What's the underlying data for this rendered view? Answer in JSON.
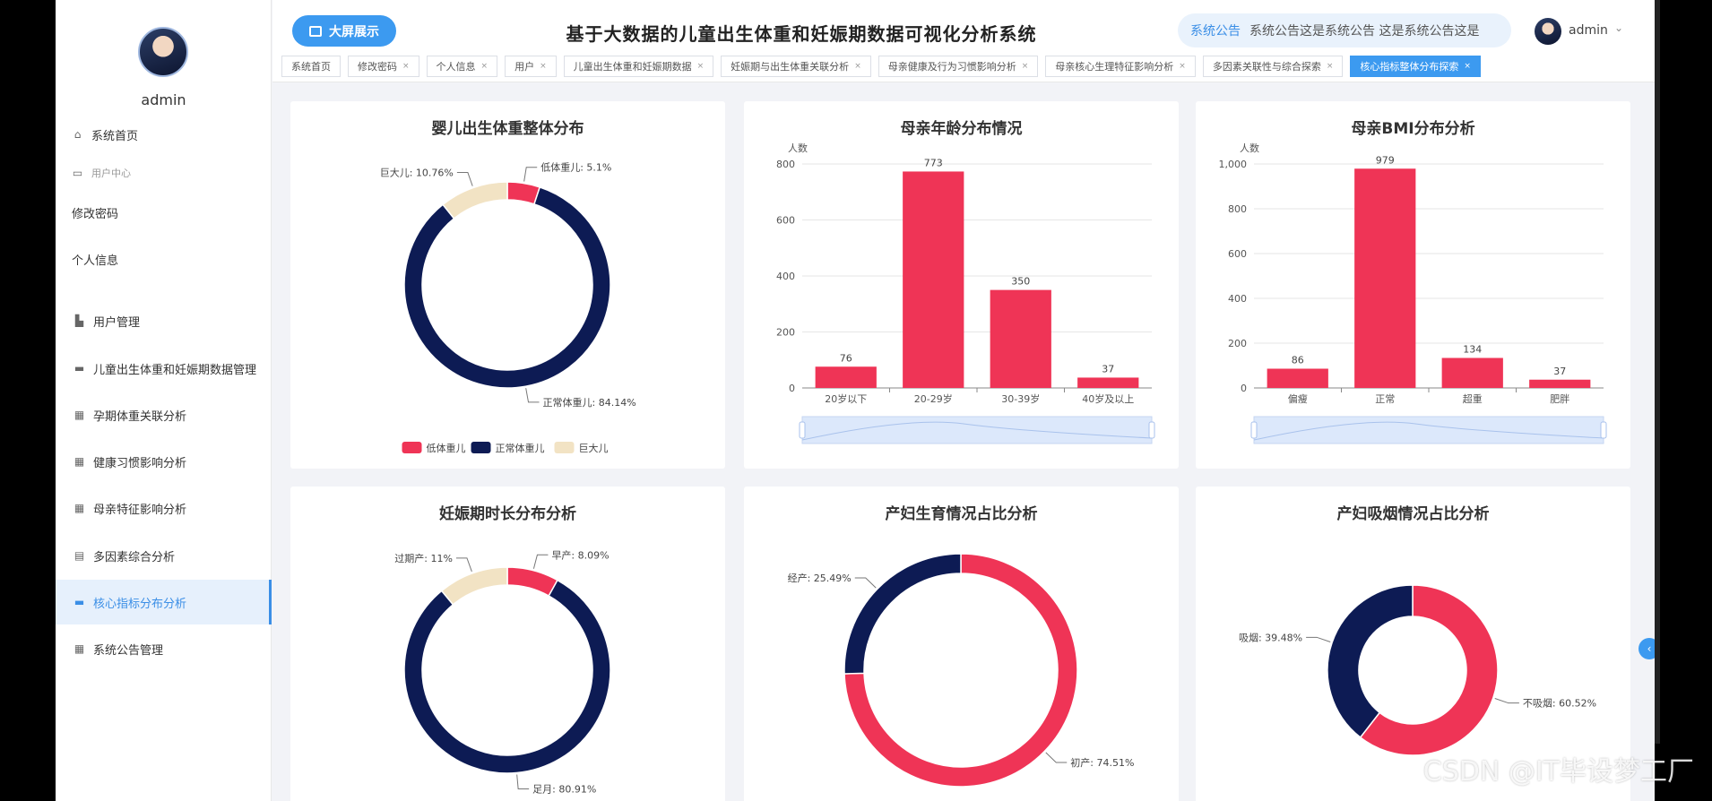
{
  "sidebar": {
    "user_name": "admin",
    "items": [
      {
        "label": "系统首页",
        "icon": "home-icon",
        "type": "main"
      },
      {
        "label": "用户中心",
        "icon": "user-center-icon",
        "type": "sub"
      },
      {
        "label": "修改密码",
        "icon": "",
        "type": "plain"
      },
      {
        "label": "个人信息",
        "icon": "",
        "type": "plain"
      },
      {
        "label": "用户管理",
        "icon": "user-manage-icon",
        "type": "main"
      },
      {
        "label": "儿童出生体重和妊娠期数据管理",
        "icon": "briefcase-icon",
        "type": "main"
      },
      {
        "label": "孕期体重关联分析",
        "icon": "grid-icon",
        "type": "main"
      },
      {
        "label": "健康习惯影响分析",
        "icon": "grid-icon",
        "type": "main"
      },
      {
        "label": "母亲特征影响分析",
        "icon": "grid-icon",
        "type": "main"
      },
      {
        "label": "多因素综合分析",
        "icon": "clipboard-icon",
        "type": "main"
      },
      {
        "label": "核心指标分布分析",
        "icon": "monitor-icon",
        "type": "active"
      },
      {
        "label": "系统公告管理",
        "icon": "grid-icon",
        "type": "main"
      }
    ]
  },
  "header": {
    "bigscreen_label": "大屏展示",
    "title": "基于大数据的儿童出生体重和妊娠期数据可视化分析系统",
    "notice_label": "系统公告",
    "notice_text": "系统公告这是系统公告    这是系统公告这是",
    "user_name": "admin"
  },
  "tabs": [
    {
      "label": "系统首页",
      "closable": false,
      "active": false
    },
    {
      "label": "修改密码",
      "closable": true,
      "active": false
    },
    {
      "label": "个人信息",
      "closable": true,
      "active": false
    },
    {
      "label": "用户",
      "closable": true,
      "active": false
    },
    {
      "label": "儿童出生体重和妊娠期数据",
      "closable": true,
      "active": false
    },
    {
      "label": "妊娠期与出生体重关联分析",
      "closable": true,
      "active": false
    },
    {
      "label": "母亲健康及行为习惯影响分析",
      "closable": true,
      "active": false
    },
    {
      "label": "母亲核心生理特征影响分析",
      "closable": true,
      "active": false
    },
    {
      "label": "多因素关联性与综合探索",
      "closable": true,
      "active": false
    },
    {
      "label": "核心指标整体分布探索",
      "closable": true,
      "active": true
    }
  ],
  "colors": {
    "red": "#ef3456",
    "navy": "#0d1b54",
    "beige": "#f2e3c4",
    "accent": "#3c9af0"
  },
  "watermark": "CSDN @IT毕设梦工厂",
  "chart_data": [
    {
      "type": "pie",
      "title": "婴儿出生体重整体分布",
      "series": [
        {
          "name": "低体重儿",
          "value": 5.1,
          "label": "低体重儿: 5.1%"
        },
        {
          "name": "正常体重儿",
          "value": 84.14,
          "label": "正常体重儿: 84.14%"
        },
        {
          "name": "巨大儿",
          "value": 10.76,
          "label": "巨大儿: 10.76%"
        }
      ],
      "legend": [
        "低体重儿",
        "正常体重儿",
        "巨大儿"
      ],
      "legend_position": "bottom"
    },
    {
      "type": "bar",
      "title": "母亲年龄分布情况",
      "ylabel": "人数",
      "categories": [
        "20岁以下",
        "20-29岁",
        "30-39岁",
        "40岁及以上"
      ],
      "values": [
        76,
        773,
        350,
        37
      ],
      "ylim": [
        0,
        800
      ],
      "yticks": [
        0,
        200,
        400,
        600,
        800
      ],
      "ytick_labels": [
        "0",
        "200",
        "400",
        "600",
        "800"
      ]
    },
    {
      "type": "bar",
      "title": "母亲BMI分布分析",
      "ylabel": "人数",
      "categories": [
        "偏瘦",
        "正常",
        "超重",
        "肥胖"
      ],
      "values": [
        86,
        979,
        134,
        37
      ],
      "ylim": [
        0,
        1000
      ],
      "yticks": [
        0,
        200,
        400,
        600,
        800,
        1000
      ],
      "ytick_labels": [
        "0",
        "200",
        "400",
        "600",
        "800",
        "1,000"
      ]
    },
    {
      "type": "pie",
      "title": "妊娠期时长分布分析",
      "series": [
        {
          "name": "早产",
          "value": 8.09,
          "label": "早产: 8.09%"
        },
        {
          "name": "足月",
          "value": 80.91,
          "label": "足月: 80.91%"
        },
        {
          "name": "过期产",
          "value": 11,
          "label": "过期产: 11%"
        }
      ]
    },
    {
      "type": "pie",
      "title": "产妇生育情况占比分析",
      "series": [
        {
          "name": "初产",
          "value": 74.51,
          "label": "初产: 74.51%"
        },
        {
          "name": "经产",
          "value": 25.49,
          "label": "经产: 25.49%"
        }
      ]
    },
    {
      "type": "pie",
      "title": "产妇吸烟情况占比分析",
      "series": [
        {
          "name": "不吸烟",
          "value": 60.52,
          "label": "不吸烟: 60.52%"
        },
        {
          "name": "吸烟",
          "value": 39.48,
          "label": "吸烟: 39.48%"
        }
      ]
    }
  ]
}
